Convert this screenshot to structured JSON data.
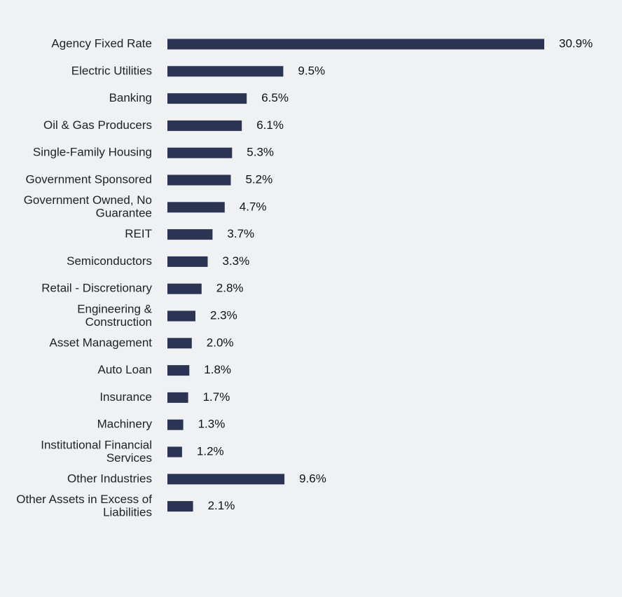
{
  "chart_data": {
    "type": "bar",
    "orientation": "horizontal",
    "title": "",
    "xlabel": "",
    "ylabel": "",
    "bar_color": "#2b3553",
    "value_suffix": "%",
    "xlim": [
      0,
      30.9
    ],
    "categories": [
      [
        "Agency Fixed Rate"
      ],
      [
        "Electric Utilities"
      ],
      [
        "Banking"
      ],
      [
        "Oil & Gas Producers"
      ],
      [
        "Single-Family Housing"
      ],
      [
        "Government Sponsored"
      ],
      [
        "Government Owned, No",
        "Guarantee"
      ],
      [
        "REIT"
      ],
      [
        "Semiconductors"
      ],
      [
        "Retail - Discretionary"
      ],
      [
        "Engineering &",
        "Construction"
      ],
      [
        "Asset Management"
      ],
      [
        "Auto Loan"
      ],
      [
        "Insurance"
      ],
      [
        "Machinery"
      ],
      [
        "Institutional Financial",
        "Services"
      ],
      [
        "Other Industries"
      ],
      [
        "Other Assets in Excess of",
        "Liabilities"
      ]
    ],
    "values": [
      30.9,
      9.5,
      6.5,
      6.1,
      5.3,
      5.2,
      4.7,
      3.7,
      3.3,
      2.8,
      2.3,
      2.0,
      1.8,
      1.7,
      1.3,
      1.2,
      9.6,
      2.1
    ],
    "value_labels": [
      "30.9%",
      "9.5%",
      "6.5%",
      "6.1%",
      "5.3%",
      "5.2%",
      "4.7%",
      "3.7%",
      "3.3%",
      "2.8%",
      "2.3%",
      "2.0%",
      "1.8%",
      "1.7%",
      "1.3%",
      "1.2%",
      "9.6%",
      "2.1%"
    ],
    "grid": false,
    "legend": "none"
  }
}
